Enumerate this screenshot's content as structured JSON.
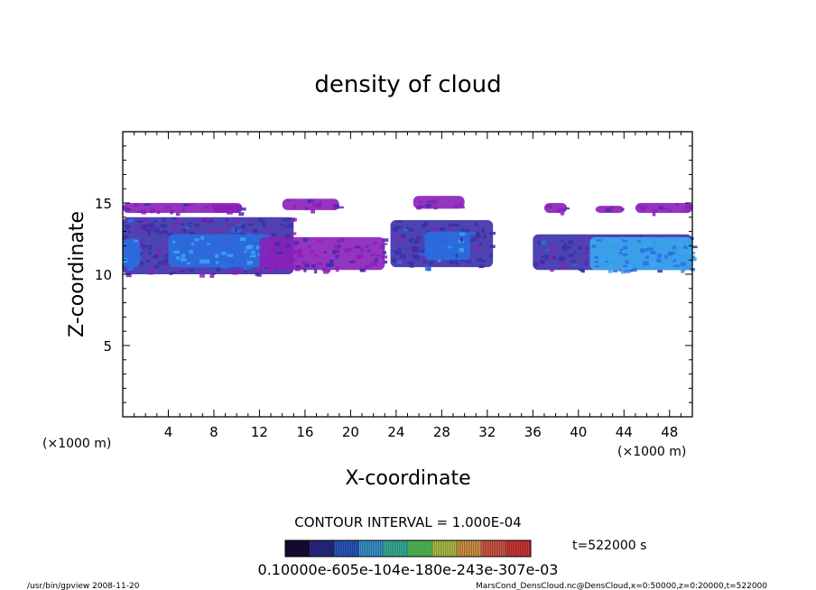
{
  "chart_data": {
    "type": "heatmap",
    "title": "density of cloud",
    "xlabel": "X-coordinate",
    "ylabel": "Z-coordinate",
    "x_unit_left": "(×1000 m)",
    "x_unit_right": "(×1000 m)",
    "xlim": [
      0,
      50
    ],
    "ylim": [
      0,
      20
    ],
    "x_ticks": [
      4,
      8,
      12,
      16,
      20,
      24,
      28,
      32,
      36,
      40,
      44,
      48
    ],
    "y_ticks": [
      5,
      10,
      15
    ],
    "contour_interval": "CONTOUR INTERVAL = 1.000E-04",
    "time_label": "t=522000 s",
    "colorbar_labels": "0.10000e-605e-104e-180e-243e-307e-03",
    "colorbar_levels": [
      0.0001,
      0.0002,
      0.0003,
      0.0004,
      0.0005,
      0.0006,
      0.0007,
      0.0008,
      0.0009,
      0.001
    ],
    "regions": [
      {
        "name": "upper-layer-left",
        "x": [
          0,
          10.5
        ],
        "z": [
          14.3,
          15.0
        ],
        "level": 0.15
      },
      {
        "name": "upper-layer-left2",
        "x": [
          8,
          10.5
        ],
        "z": [
          14.3,
          14.9
        ],
        "level": 0.15
      },
      {
        "name": "upper-strip-16",
        "x": [
          14,
          19
        ],
        "z": [
          14.5,
          15.3
        ],
        "level": 0.15
      },
      {
        "name": "upper-blob-28",
        "x": [
          25.5,
          30
        ],
        "z": [
          14.6,
          15.5
        ],
        "level": 0.15
      },
      {
        "name": "upper-blob-38",
        "x": [
          37,
          39
        ],
        "z": [
          14.3,
          15.0
        ],
        "level": 0.15
      },
      {
        "name": "upper-blob-42",
        "x": [
          41.5,
          44
        ],
        "z": [
          14.3,
          14.8
        ],
        "level": 0.15
      },
      {
        "name": "upper-right",
        "x": [
          45,
          50
        ],
        "z": [
          14.3,
          15.0
        ],
        "level": 0.15
      },
      {
        "name": "main-band-left",
        "x": [
          0,
          15
        ],
        "z": [
          10.0,
          14.0
        ],
        "level": 0.35
      },
      {
        "name": "main-band-left-core",
        "x": [
          4,
          13
        ],
        "z": [
          10.5,
          12.8
        ],
        "level": 0.7
      },
      {
        "name": "left-edge-core",
        "x": [
          0,
          1.5
        ],
        "z": [
          10.5,
          12.5
        ],
        "level": 0.7
      },
      {
        "name": "band-20",
        "x": [
          12,
          23
        ],
        "z": [
          10.3,
          12.6
        ],
        "level": 0.2
      },
      {
        "name": "band-28",
        "x": [
          23.5,
          32.5
        ],
        "z": [
          10.5,
          13.8
        ],
        "level": 0.35
      },
      {
        "name": "band-28-core",
        "x": [
          26.5,
          30.5
        ],
        "z": [
          11.0,
          13.0
        ],
        "level": 0.65
      },
      {
        "name": "band-right",
        "x": [
          36,
          50
        ],
        "z": [
          10.3,
          12.8
        ],
        "level": 0.35
      },
      {
        "name": "band-right-core",
        "x": [
          41,
          50
        ],
        "z": [
          10.3,
          12.6
        ],
        "level": 0.75
      }
    ]
  },
  "footer": {
    "left": "/usr/bin/gpview   2008-11-20",
    "right": "MarsCond_DensCloud.nc@DensCloud,x=0:50000,z=0:20000,t=522000"
  },
  "colors": {
    "low": "#8a1fb8",
    "mid": "#3a2fa8",
    "high": "#2a6ee0",
    "peak": "#3aa8f0"
  }
}
